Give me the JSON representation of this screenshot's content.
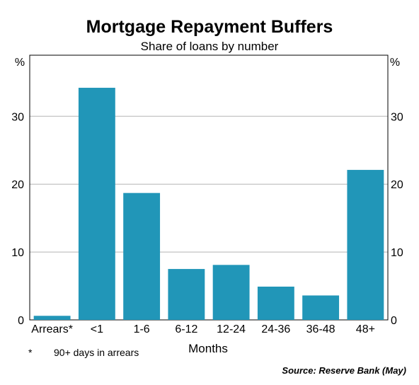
{
  "chart_data": {
    "type": "bar",
    "title": "Mortgage Repayment Buffers",
    "subtitle": "Share of loans by number",
    "ylabel_left": "%",
    "ylabel_right": "%",
    "xlabel": "Months",
    "categories": [
      "Arrears*",
      "<1",
      "1-6",
      "6-12",
      "12-24",
      "24-36",
      "36-48",
      "48+"
    ],
    "values": [
      0.6,
      34.2,
      18.7,
      7.5,
      8.1,
      4.9,
      3.6,
      22.1
    ],
    "ylim": [
      0,
      39
    ],
    "yticks": [
      0,
      10,
      20,
      30
    ],
    "grid": true,
    "bar_color": "#2196b8",
    "footnote_marker": "*",
    "footnote_text": "90+ days in arrears",
    "source": "Source: Reserve Bank (May)"
  }
}
